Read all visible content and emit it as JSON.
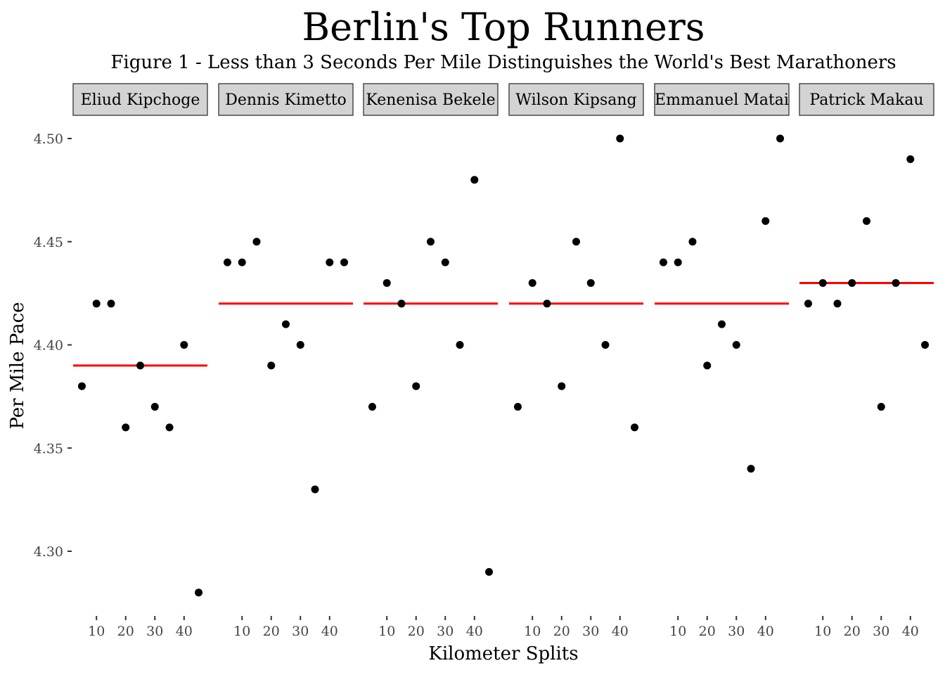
{
  "chart_data": {
    "type": "scatter",
    "title": "Berlin's Top Runners",
    "subtitle": "Figure 1 - Less than 3 Seconds Per Mile Distinguishes the World's Best Marathoners",
    "xlabel": "Kilometer Splits",
    "ylabel": "Per Mile Pace",
    "ylim": [
      4.27,
      4.52
    ],
    "xlim": [
      2,
      48
    ],
    "yticks": [
      4.3,
      4.35,
      4.4,
      4.45,
      4.5
    ],
    "ytick_labels": [
      "4.30",
      "4.35",
      "4.40",
      "4.45",
      "4.50"
    ],
    "xticks": [
      10,
      20,
      30,
      40
    ],
    "xtick_labels": [
      "10",
      "20",
      "30",
      "40"
    ],
    "x": [
      5,
      10,
      15,
      20,
      25,
      30,
      35,
      40,
      45
    ],
    "grid": false,
    "legend": "none",
    "point_color": "#000000",
    "mean_line_color": "#ff0000",
    "strip_fill": "#d3d3d3",
    "series": [
      {
        "name": "Eliud Kipchoge",
        "values": [
          4.38,
          4.42,
          4.42,
          4.36,
          4.39,
          4.37,
          4.36,
          4.4,
          4.28
        ],
        "mean": 4.39
      },
      {
        "name": "Dennis Kimetto",
        "values": [
          4.44,
          4.44,
          4.45,
          4.39,
          4.41,
          4.4,
          4.33,
          4.44,
          4.44
        ],
        "mean": 4.42
      },
      {
        "name": "Kenenisa Bekele",
        "values": [
          4.37,
          4.43,
          4.42,
          4.38,
          4.45,
          4.44,
          4.4,
          4.48,
          4.29
        ],
        "mean": 4.42
      },
      {
        "name": "Wilson Kipsang",
        "values": [
          4.37,
          4.43,
          4.42,
          4.38,
          4.45,
          4.43,
          4.4,
          4.5,
          4.36
        ],
        "mean": 4.42
      },
      {
        "name": "Emmanuel Matai",
        "values": [
          4.44,
          4.44,
          4.45,
          4.39,
          4.41,
          4.4,
          4.34,
          4.46,
          4.5
        ],
        "mean": 4.42
      },
      {
        "name": "Patrick Makau",
        "values": [
          4.42,
          4.43,
          4.42,
          4.43,
          4.46,
          4.37,
          4.43,
          4.49,
          4.4
        ],
        "mean": 4.43
      }
    ]
  }
}
